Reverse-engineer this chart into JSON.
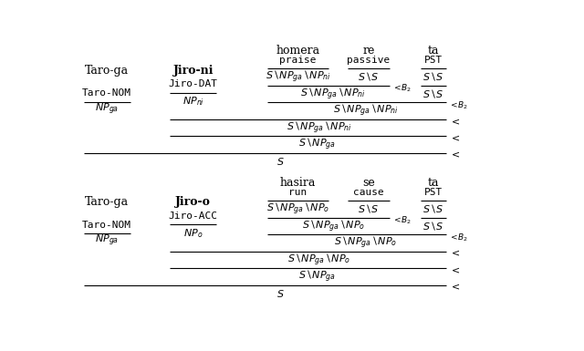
{
  "bg_color": "#ffffff",
  "figsize": [
    6.4,
    3.85
  ],
  "dpi": 100,
  "deriv1": {
    "words": [
      "homera",
      "re",
      "ta"
    ],
    "glosses": [
      "praise",
      "passive",
      "PST"
    ],
    "jiro_word": "Jiro-ni",
    "jiro_gloss": "Jiro-DAT",
    "jiro_cat": "NP_{ni}",
    "taro_word": "Taro-ga",
    "taro_gloss": "Taro-NOM",
    "cat_verb": "S{\\backslash}NP_{ga}{\\backslash}NP_{ni}",
    "cat_ss": "S{\\backslash}S",
    "cat_jiro": "NP_{ni}",
    "cat_taro": "NP_{ga}",
    "cat_snpga": "S{\\backslash}NP_{ga}",
    "cat_s": "S"
  },
  "deriv2": {
    "words": [
      "hasira",
      "se",
      "ta"
    ],
    "glosses": [
      "run",
      "cause",
      "PST"
    ],
    "jiro_word": "Jiro-o",
    "jiro_gloss": "Jiro-ACC",
    "jiro_cat": "NP_{o}",
    "taro_word": "Taro-ga",
    "taro_gloss": "Taro-NOM",
    "cat_verb": "S{\\backslash}NP_{ga}{\\backslash}NP_{o}",
    "cat_ss": "S{\\backslash}S",
    "cat_jiro": "NP_{o}",
    "cat_taro": "NP_{ga}",
    "cat_snpga": "S{\\backslash}NP_{ga}",
    "cat_s": "S"
  }
}
